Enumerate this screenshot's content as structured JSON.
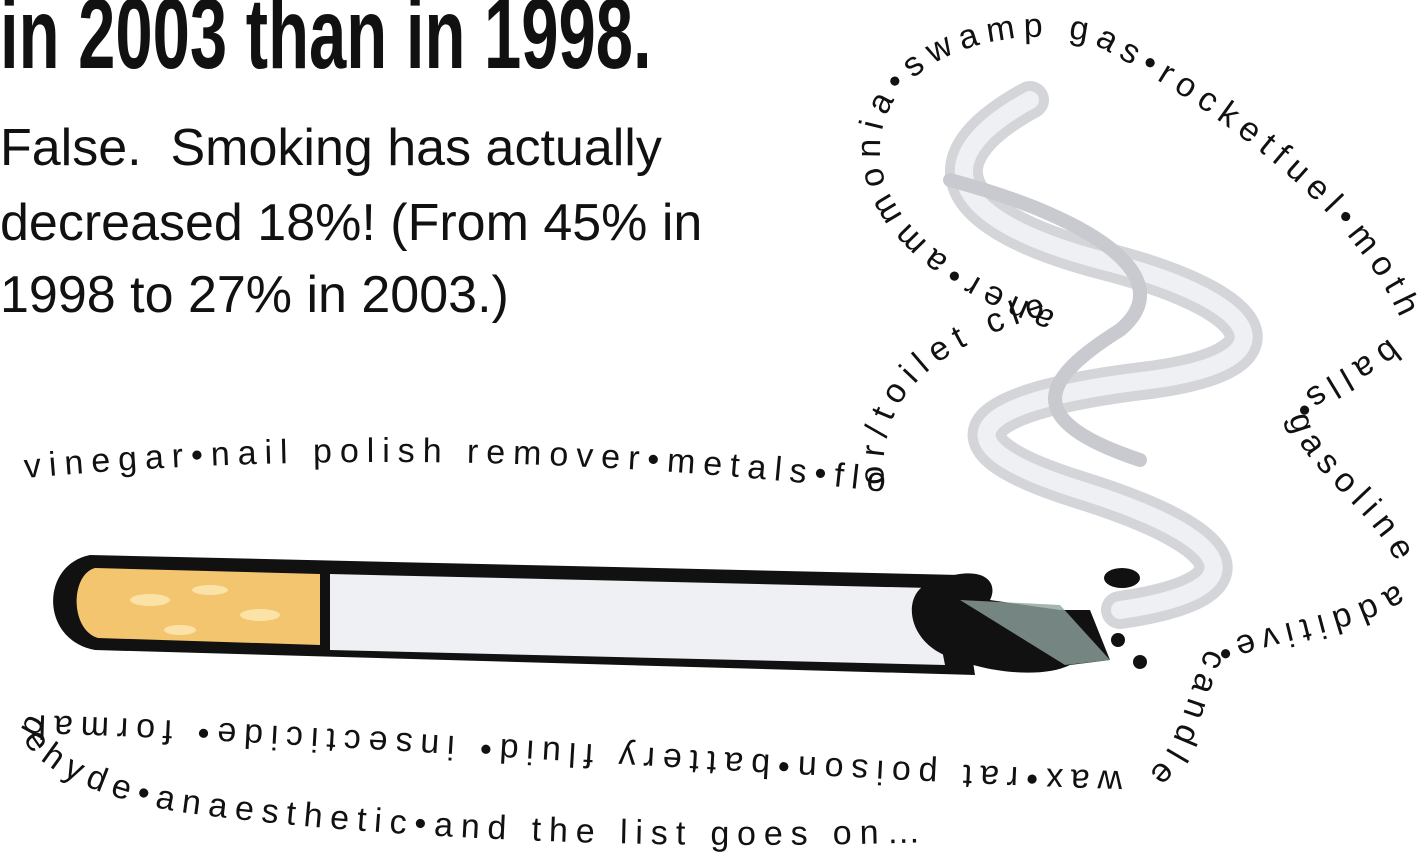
{
  "title": "in 2003 than in 1998.",
  "body": [
    "False.  Smoking has actually",
    "decreased 18%! (From 45% in",
    "1998 to 27% in 2003.)"
  ],
  "ingredients": "vinegar•nail polish remover•metals•floor/toilet cleaner•ammonia•swamp gas•rocketfuel•moth balls•gasoline additive•candle wax•rat poison•battery fluid• insecticide• formaldehyde•anaesthetic•and the list goes on…"
}
